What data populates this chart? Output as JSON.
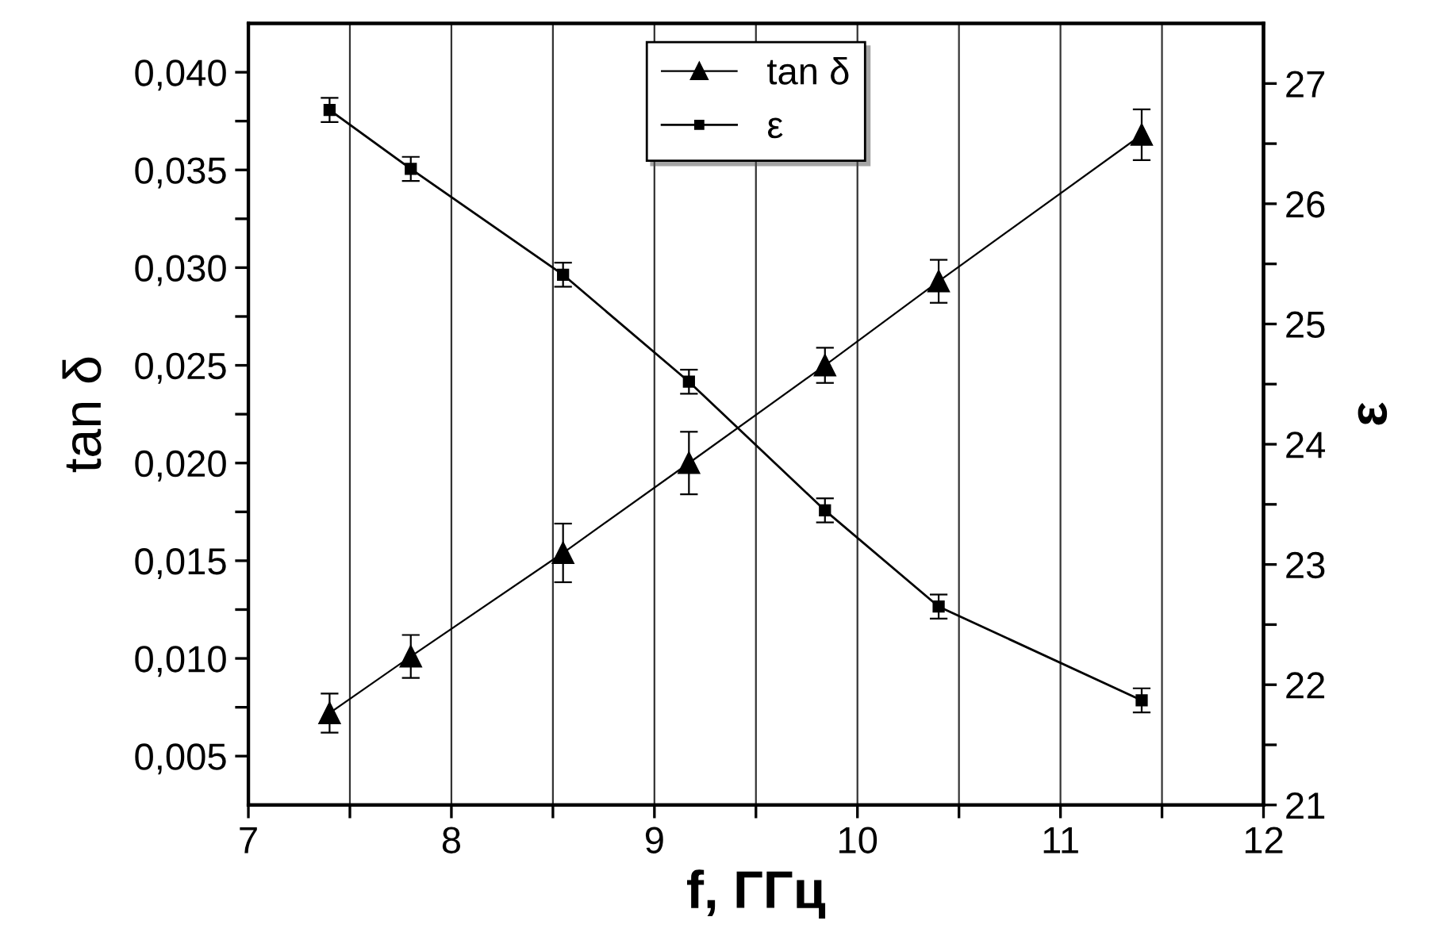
{
  "chart_data": {
    "type": "line",
    "xlabel": "f, ГГц",
    "ylabel": "tan δ",
    "y2label": "ε",
    "xlim": [
      7,
      12
    ],
    "xticks": [
      7,
      {
        "value": 7.5,
        "label": null
      },
      8,
      {
        "value": 8.5,
        "label": null
      },
      9,
      {
        "value": 9.5,
        "label": null
      },
      10,
      {
        "value": 10.5,
        "label": null
      },
      11,
      {
        "value": 11.5,
        "label": null
      },
      12
    ],
    "ylim": [
      0.0025,
      0.0425
    ],
    "yticks": [
      {
        "value": 0.005,
        "label": "0,005"
      },
      {
        "value": 0.0075,
        "label": null
      },
      {
        "value": 0.01,
        "label": "0,010"
      },
      {
        "value": 0.0125,
        "label": null
      },
      {
        "value": 0.015,
        "label": "0,015"
      },
      {
        "value": 0.0175,
        "label": null
      },
      {
        "value": 0.02,
        "label": "0,020"
      },
      {
        "value": 0.0225,
        "label": null
      },
      {
        "value": 0.025,
        "label": "0,025"
      },
      {
        "value": 0.0275,
        "label": null
      },
      {
        "value": 0.03,
        "label": "0,030"
      },
      {
        "value": 0.0325,
        "label": null
      },
      {
        "value": 0.035,
        "label": "0,035"
      },
      {
        "value": 0.0375,
        "label": null
      },
      {
        "value": 0.04,
        "label": "0,040"
      }
    ],
    "y2lim": [
      21,
      27.5
    ],
    "y2ticks": [
      21,
      {
        "value": 21.5,
        "label": null
      },
      22,
      {
        "value": 22.5,
        "label": null
      },
      23,
      {
        "value": 23.5,
        "label": null
      },
      24,
      {
        "value": 24.5,
        "label": null
      },
      25,
      {
        "value": 25.5,
        "label": null
      },
      26,
      {
        "value": 26.5,
        "label": null
      },
      27
    ],
    "grid": "x",
    "legend": "top",
    "series": [
      {
        "name": "tan δ",
        "color": "#000000",
        "marker": "triangle",
        "x": [
          7.4,
          7.8,
          8.55,
          9.17,
          9.84,
          10.4,
          11.4
        ],
        "values": [
          0.0072,
          0.0101,
          0.0154,
          0.02,
          0.025,
          0.0293,
          0.0368
        ],
        "errors": [
          0.001,
          0.0011,
          0.0015,
          0.0016,
          0.0009,
          0.0011,
          0.0013
        ]
      },
      {
        "name": "ε",
        "color": "#000000",
        "marker": "square",
        "axis": "y2",
        "x": [
          7.4,
          7.8,
          8.55,
          9.17,
          9.84,
          10.4,
          11.4
        ],
        "values": [
          26.78,
          26.29,
          25.41,
          24.52,
          23.45,
          22.65,
          21.87
        ],
        "errors": [
          0.1,
          0.1,
          0.1,
          0.1,
          0.1,
          0.1,
          0.1
        ]
      }
    ]
  }
}
